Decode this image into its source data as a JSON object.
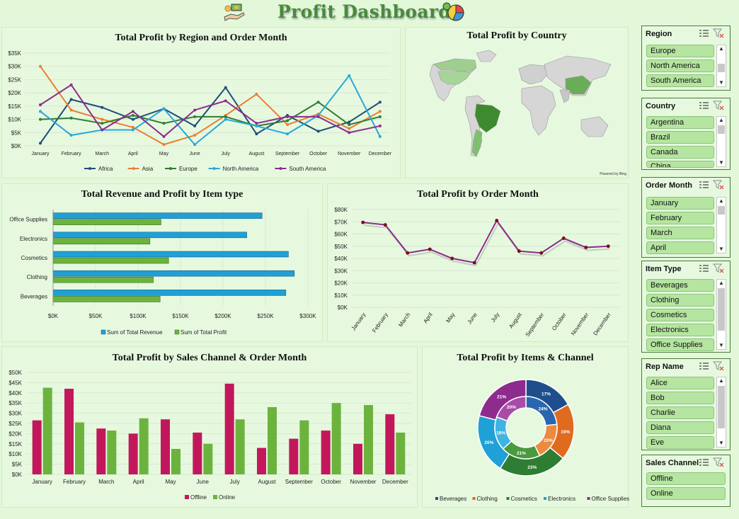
{
  "dashboard": {
    "title": "Profit Dashboard"
  },
  "colors": {
    "africa": "#1f4e79",
    "asia": "#ed7d31",
    "europe": "#2e7d32",
    "north_america": "#2aa7d8",
    "south_america": "#8e2b8e",
    "revenue": "#1fa0d6",
    "profit": "#6cb33e",
    "offline": "#c2185b",
    "online": "#6cb33e",
    "line": "#8e2b8e"
  },
  "charts": {
    "region_month": {
      "title": "Total Profit by Region and Order Month",
      "y_ticks": [
        "$35K",
        "$30K",
        "$25K",
        "$20K",
        "$15K",
        "$10K",
        "$5K",
        "$0K"
      ],
      "months": [
        "January",
        "February",
        "March",
        "April",
        "May",
        "June",
        "July",
        "August",
        "September",
        "October",
        "November",
        "December"
      ],
      "legend": [
        "Africa",
        "Asia",
        "Europe",
        "North America",
        "South America"
      ]
    },
    "country": {
      "title": "Total Profit by Country",
      "credit": "Powered by Bing"
    },
    "item_type": {
      "title": "Total Revenue and Profit by Item type",
      "categories": [
        "Office Supplies",
        "Electronics",
        "Cosmetics",
        "Clothing",
        "Beverages"
      ],
      "x_ticks": [
        "$0K",
        "$50K",
        "$100K",
        "$150K",
        "$200K",
        "$250K",
        "$300K"
      ],
      "legend": [
        "Sum of Total Revenue",
        "Sum of Total Profit"
      ]
    },
    "order_month": {
      "title": "Total Profit by Order Month",
      "y_ticks": [
        "$80K",
        "$70K",
        "$60K",
        "$50K",
        "$40K",
        "$30K",
        "$20K",
        "$10K",
        "$0K"
      ],
      "months": [
        "January",
        "February",
        "March",
        "April",
        "May",
        "June",
        "July",
        "August",
        "September",
        "October",
        "November",
        "December"
      ]
    },
    "channel_month": {
      "title": "Total Profit by Sales Channel & Order Month",
      "y_ticks": [
        "$50K",
        "$45K",
        "$40K",
        "$35K",
        "$30K",
        "$25K",
        "$20K",
        "$15K",
        "$10K",
        "$5K",
        "$0K"
      ],
      "months": [
        "January",
        "February",
        "March",
        "April",
        "May",
        "June",
        "July",
        "August",
        "September",
        "October",
        "November",
        "December"
      ],
      "legend": [
        "Offline",
        "Online"
      ]
    },
    "items_channel": {
      "title": "Total Profit by Items & Channel",
      "legend": [
        "Beverages",
        "Clothing",
        "Cosmetics",
        "Electronics",
        "Office Supplies"
      ],
      "outer_labels": [
        "17%",
        "19%",
        "23%",
        "20%",
        "21%"
      ],
      "inner_labels": [
        "24%",
        "20%",
        "21%",
        "18%",
        "20%"
      ]
    }
  },
  "chart_data": [
    {
      "type": "line",
      "title": "Total Profit by Region and Order Month",
      "x": [
        "January",
        "February",
        "March",
        "April",
        "May",
        "June",
        "July",
        "August",
        "September",
        "October",
        "November",
        "December"
      ],
      "ylim": [
        0,
        35000
      ],
      "series": [
        {
          "name": "Africa",
          "values": [
            1000,
            17500,
            14500,
            10000,
            14000,
            7500,
            22000,
            4500,
            11500,
            5500,
            9000,
            16500
          ]
        },
        {
          "name": "Asia",
          "values": [
            30000,
            13500,
            10000,
            7000,
            500,
            4000,
            11500,
            19500,
            8000,
            12000,
            6500,
            13000
          ]
        },
        {
          "name": "Europe",
          "values": [
            10000,
            10500,
            8500,
            11500,
            8500,
            11000,
            11000,
            7500,
            9500,
            16500,
            8000,
            11000
          ]
        },
        {
          "name": "North America",
          "values": [
            13000,
            4000,
            6000,
            6000,
            14000,
            500,
            10000,
            7500,
            4500,
            11500,
            26500,
            3500
          ]
        },
        {
          "name": "South America",
          "values": [
            15500,
            23000,
            6000,
            13000,
            3500,
            13500,
            17000,
            8500,
            11000,
            11000,
            5000,
            7500
          ]
        }
      ]
    },
    {
      "type": "bar",
      "title": "Total Revenue and Profit by Item type",
      "categories": [
        "Office Supplies",
        "Electronics",
        "Cosmetics",
        "Clothing",
        "Beverages"
      ],
      "xlim": [
        0,
        300000
      ],
      "series": [
        {
          "name": "Sum of Total Revenue",
          "values": [
            246000,
            228000,
            277000,
            284000,
            274000
          ]
        },
        {
          "name": "Sum of Total Profit",
          "values": [
            127000,
            114000,
            136000,
            118000,
            126000
          ]
        }
      ]
    },
    {
      "type": "line",
      "title": "Total Profit by Order Month",
      "x": [
        "January",
        "February",
        "March",
        "April",
        "May",
        "June",
        "July",
        "August",
        "September",
        "October",
        "November",
        "December"
      ],
      "ylim": [
        0,
        80000
      ],
      "series": [
        {
          "values": [
            69500,
            67500,
            44500,
            47500,
            40000,
            36500,
            71000,
            46000,
            44500,
            56500,
            49000,
            50000
          ]
        }
      ]
    },
    {
      "type": "bar",
      "title": "Total Profit by Sales Channel & Order Month",
      "categories": [
        "January",
        "February",
        "March",
        "April",
        "May",
        "June",
        "July",
        "August",
        "September",
        "October",
        "November",
        "December"
      ],
      "ylim": [
        0,
        50000
      ],
      "series": [
        {
          "name": "Offline",
          "values": [
            26500,
            42000,
            22500,
            20000,
            27000,
            20500,
            44500,
            13000,
            17500,
            21500,
            15000,
            29500
          ]
        },
        {
          "name": "Online",
          "values": [
            42500,
            25500,
            21500,
            27500,
            12500,
            15000,
            27000,
            33000,
            26500,
            35000,
            34000,
            20500
          ]
        }
      ]
    },
    {
      "type": "pie",
      "title": "Total Profit by Items & Channel",
      "categories": [
        "Beverages",
        "Clothing",
        "Cosmetics",
        "Electronics",
        "Office Supplies"
      ],
      "series": [
        {
          "values": [
            17,
            19,
            23,
            20,
            21
          ]
        },
        {
          "values": [
            24,
            20,
            21,
            18,
            20
          ]
        }
      ]
    }
  ],
  "slicers": [
    {
      "title": "Region",
      "items": [
        "Europe",
        "North America",
        "South America"
      ]
    },
    {
      "title": "Country",
      "items": [
        "Argentina",
        "Brazil",
        "Canada",
        "China"
      ]
    },
    {
      "title": "Order Month",
      "items": [
        "January",
        "February",
        "March",
        "April"
      ]
    },
    {
      "title": "Item Type",
      "items": [
        "Beverages",
        "Clothing",
        "Cosmetics",
        "Electronics",
        "Office Supplies"
      ]
    },
    {
      "title": "Rep Name",
      "items": [
        "Alice",
        "Bob",
        "Charlie",
        "Diana",
        "Eve"
      ]
    },
    {
      "title": "Sales Channel",
      "items": [
        "Offline",
        "Online"
      ]
    }
  ]
}
